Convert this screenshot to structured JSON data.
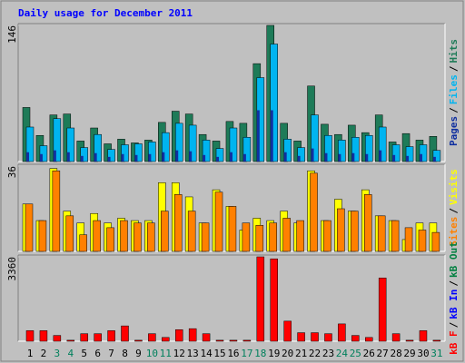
{
  "chart_data": [
    {
      "type": "bar",
      "title": "Daily usage for December 2011",
      "ylim": [
        0,
        146
      ],
      "yticks": [
        146
      ],
      "legend_separator": "/",
      "series": [
        {
          "name": "Pages",
          "color": "#1030a0",
          "values": [
            10,
            8,
            12,
            10,
            6,
            9,
            5,
            8,
            7,
            8,
            10,
            12,
            11,
            7,
            5,
            10,
            8,
            55,
            55,
            10,
            6,
            14,
            9,
            8,
            9,
            8,
            12,
            7,
            6,
            8,
            5
          ]
        },
        {
          "name": "Files",
          "color": "#00b4f0",
          "values": [
            37,
            17,
            46,
            36,
            15,
            29,
            13,
            18,
            19,
            21,
            31,
            41,
            39,
            23,
            14,
            36,
            26,
            90,
            126,
            24,
            15,
            50,
            28,
            23,
            26,
            28,
            37,
            18,
            16,
            18,
            12
          ]
        },
        {
          "name": "Hits",
          "color": "#1e7b58",
          "values": [
            58,
            28,
            50,
            51,
            22,
            36,
            19,
            24,
            20,
            23,
            42,
            54,
            51,
            29,
            22,
            43,
            41,
            105,
            146,
            41,
            22,
            81,
            40,
            29,
            39,
            31,
            50,
            21,
            30,
            23,
            27
          ]
        }
      ]
    },
    {
      "type": "bar",
      "ylim": [
        0,
        36
      ],
      "yticks": [
        36
      ],
      "legend_separator": "/",
      "series": [
        {
          "name": "Sites",
          "color": "#ff8000",
          "values": [
            20,
            13,
            34,
            15,
            7,
            13,
            10,
            13,
            12,
            12,
            17,
            24,
            17,
            12,
            25,
            19,
            12,
            11,
            12,
            14,
            13,
            33,
            13,
            18,
            17,
            24,
            15,
            13,
            10,
            9,
            8
          ]
        },
        {
          "name": "Visits",
          "color": "#ffff00",
          "values": [
            20,
            13,
            35,
            17,
            12,
            16,
            12,
            14,
            13,
            13,
            29,
            29,
            23,
            12,
            26,
            19,
            9,
            14,
            13,
            17,
            12,
            34,
            13,
            22,
            17,
            26,
            15,
            13,
            5,
            12,
            12
          ]
        }
      ]
    },
    {
      "type": "bar",
      "ylim": [
        0,
        3360
      ],
      "yticks": [
        3360
      ],
      "legend_separator": "/",
      "categories": [
        "1",
        "2",
        "3",
        "4",
        "5",
        "6",
        "7",
        "8",
        "9",
        "10",
        "11",
        "12",
        "13",
        "14",
        "15",
        "16",
        "17",
        "18",
        "19",
        "20",
        "21",
        "22",
        "23",
        "24",
        "25",
        "26",
        "27",
        "28",
        "29",
        "30",
        "31"
      ],
      "category_colors": [
        "#000000",
        "#000000",
        "#00805c",
        "#00805c",
        "#000000",
        "#000000",
        "#000000",
        "#000000",
        "#000000",
        "#00805c",
        "#00805c",
        "#000000",
        "#000000",
        "#000000",
        "#000000",
        "#000000",
        "#00805c",
        "#00805c",
        "#000000",
        "#000000",
        "#000000",
        "#000000",
        "#000000",
        "#00805c",
        "#00805c",
        "#000000",
        "#000000",
        "#000000",
        "#000000",
        "#000000",
        "#00805c"
      ],
      "series": [
        {
          "name": "kB F",
          "color": "#ff0000",
          "values": [
            420,
            420,
            230,
            40,
            300,
            300,
            420,
            610,
            40,
            300,
            150,
            460,
            500,
            300,
            40,
            40,
            40,
            3360,
            3280,
            800,
            340,
            340,
            300,
            690,
            230,
            150,
            2520,
            300,
            40,
            420,
            40
          ]
        },
        {
          "name": "kB In",
          "color": "#0000ff",
          "values": [
            null,
            null,
            null,
            null,
            null,
            null,
            null,
            null,
            null,
            null,
            null,
            null,
            null,
            null,
            null,
            null,
            null,
            null,
            null,
            null,
            null,
            null,
            null,
            null,
            null,
            null,
            null,
            null,
            null,
            null,
            null
          ]
        },
        {
          "name": "kB Out",
          "color": "#008040",
          "values": [
            null,
            null,
            null,
            null,
            null,
            null,
            null,
            null,
            null,
            null,
            null,
            null,
            null,
            null,
            null,
            null,
            null,
            null,
            null,
            null,
            null,
            null,
            null,
            null,
            null,
            null,
            null,
            null,
            null,
            null,
            null
          ]
        }
      ]
    }
  ]
}
